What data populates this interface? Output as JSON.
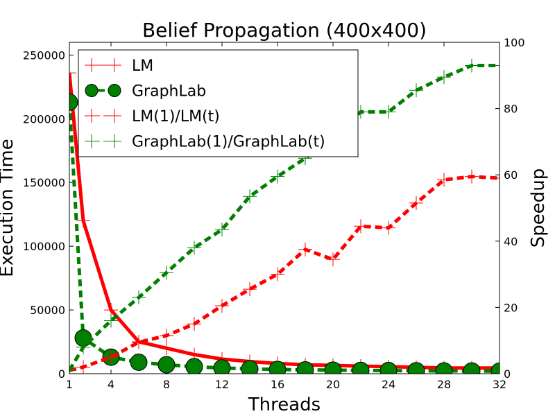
{
  "chart_data": {
    "type": "line",
    "title": "Belief Propagation (400x400)",
    "xlabel": "Threads",
    "ylabel_left": "Execution Time",
    "ylabel_right": "Speedup",
    "x_ticks": [
      1,
      4,
      8,
      12,
      16,
      20,
      24,
      28,
      32
    ],
    "y_left_ticks": [
      0,
      50000,
      100000,
      150000,
      200000,
      250000
    ],
    "y_right_ticks": [
      0,
      20,
      40,
      60,
      80,
      100
    ],
    "xlim": [
      1,
      32
    ],
    "ylim_left": [
      0,
      260000
    ],
    "ylim_right": [
      0,
      100
    ],
    "grid": false,
    "legend_position": "upper-left",
    "series": [
      {
        "name": "LM",
        "axis": "left",
        "color": "#ff0000",
        "style": "solid",
        "marker": "plus",
        "x": [
          1,
          2,
          4,
          6,
          8,
          10,
          12,
          14,
          16,
          18,
          20,
          22,
          24,
          26,
          28,
          30,
          32
        ],
        "y": [
          236000,
          120000,
          50000,
          25000,
          20000,
          15000,
          11500,
          9500,
          8000,
          7000,
          6500,
          6000,
          5500,
          5000,
          4500,
          4500,
          4500
        ]
      },
      {
        "name": "GraphLab",
        "axis": "left",
        "color": "#008000",
        "style": "dashed",
        "marker": "circle",
        "x": [
          1,
          2,
          4,
          6,
          8,
          10,
          12,
          14,
          16,
          18,
          20,
          22,
          24,
          26,
          28,
          30,
          32
        ],
        "y": [
          213000,
          28000,
          13000,
          9000,
          7000,
          5500,
          4500,
          3800,
          3300,
          3000,
          2800,
          2600,
          2500,
          2300,
          2200,
          2100,
          2000
        ]
      },
      {
        "name": "LM(1)/LM(t)",
        "axis": "right",
        "color": "#ff0000",
        "style": "dashed",
        "marker": "plus",
        "x": [
          1,
          2,
          4,
          6,
          8,
          10,
          12,
          14,
          16,
          18,
          20,
          22,
          24,
          26,
          28,
          30,
          32
        ],
        "y": [
          1,
          2,
          5,
          9.5,
          11.5,
          15,
          20.5,
          25.5,
          30,
          37.5,
          34.5,
          44.5,
          44,
          51.5,
          58.5,
          59.5,
          59
        ]
      },
      {
        "name": "GraphLab(1)/GraphLab(t)",
        "axis": "right",
        "color": "#008000",
        "style": "dashed",
        "marker": "plus",
        "x": [
          1,
          2,
          4,
          6,
          8,
          10,
          12,
          14,
          16,
          18,
          20,
          22,
          24,
          26,
          28,
          30,
          32
        ],
        "y": [
          1,
          8,
          16,
          23,
          30.5,
          38,
          43.5,
          53.5,
          59.5,
          65,
          71.5,
          79,
          79,
          85.5,
          89.5,
          93,
          93
        ]
      }
    ]
  }
}
